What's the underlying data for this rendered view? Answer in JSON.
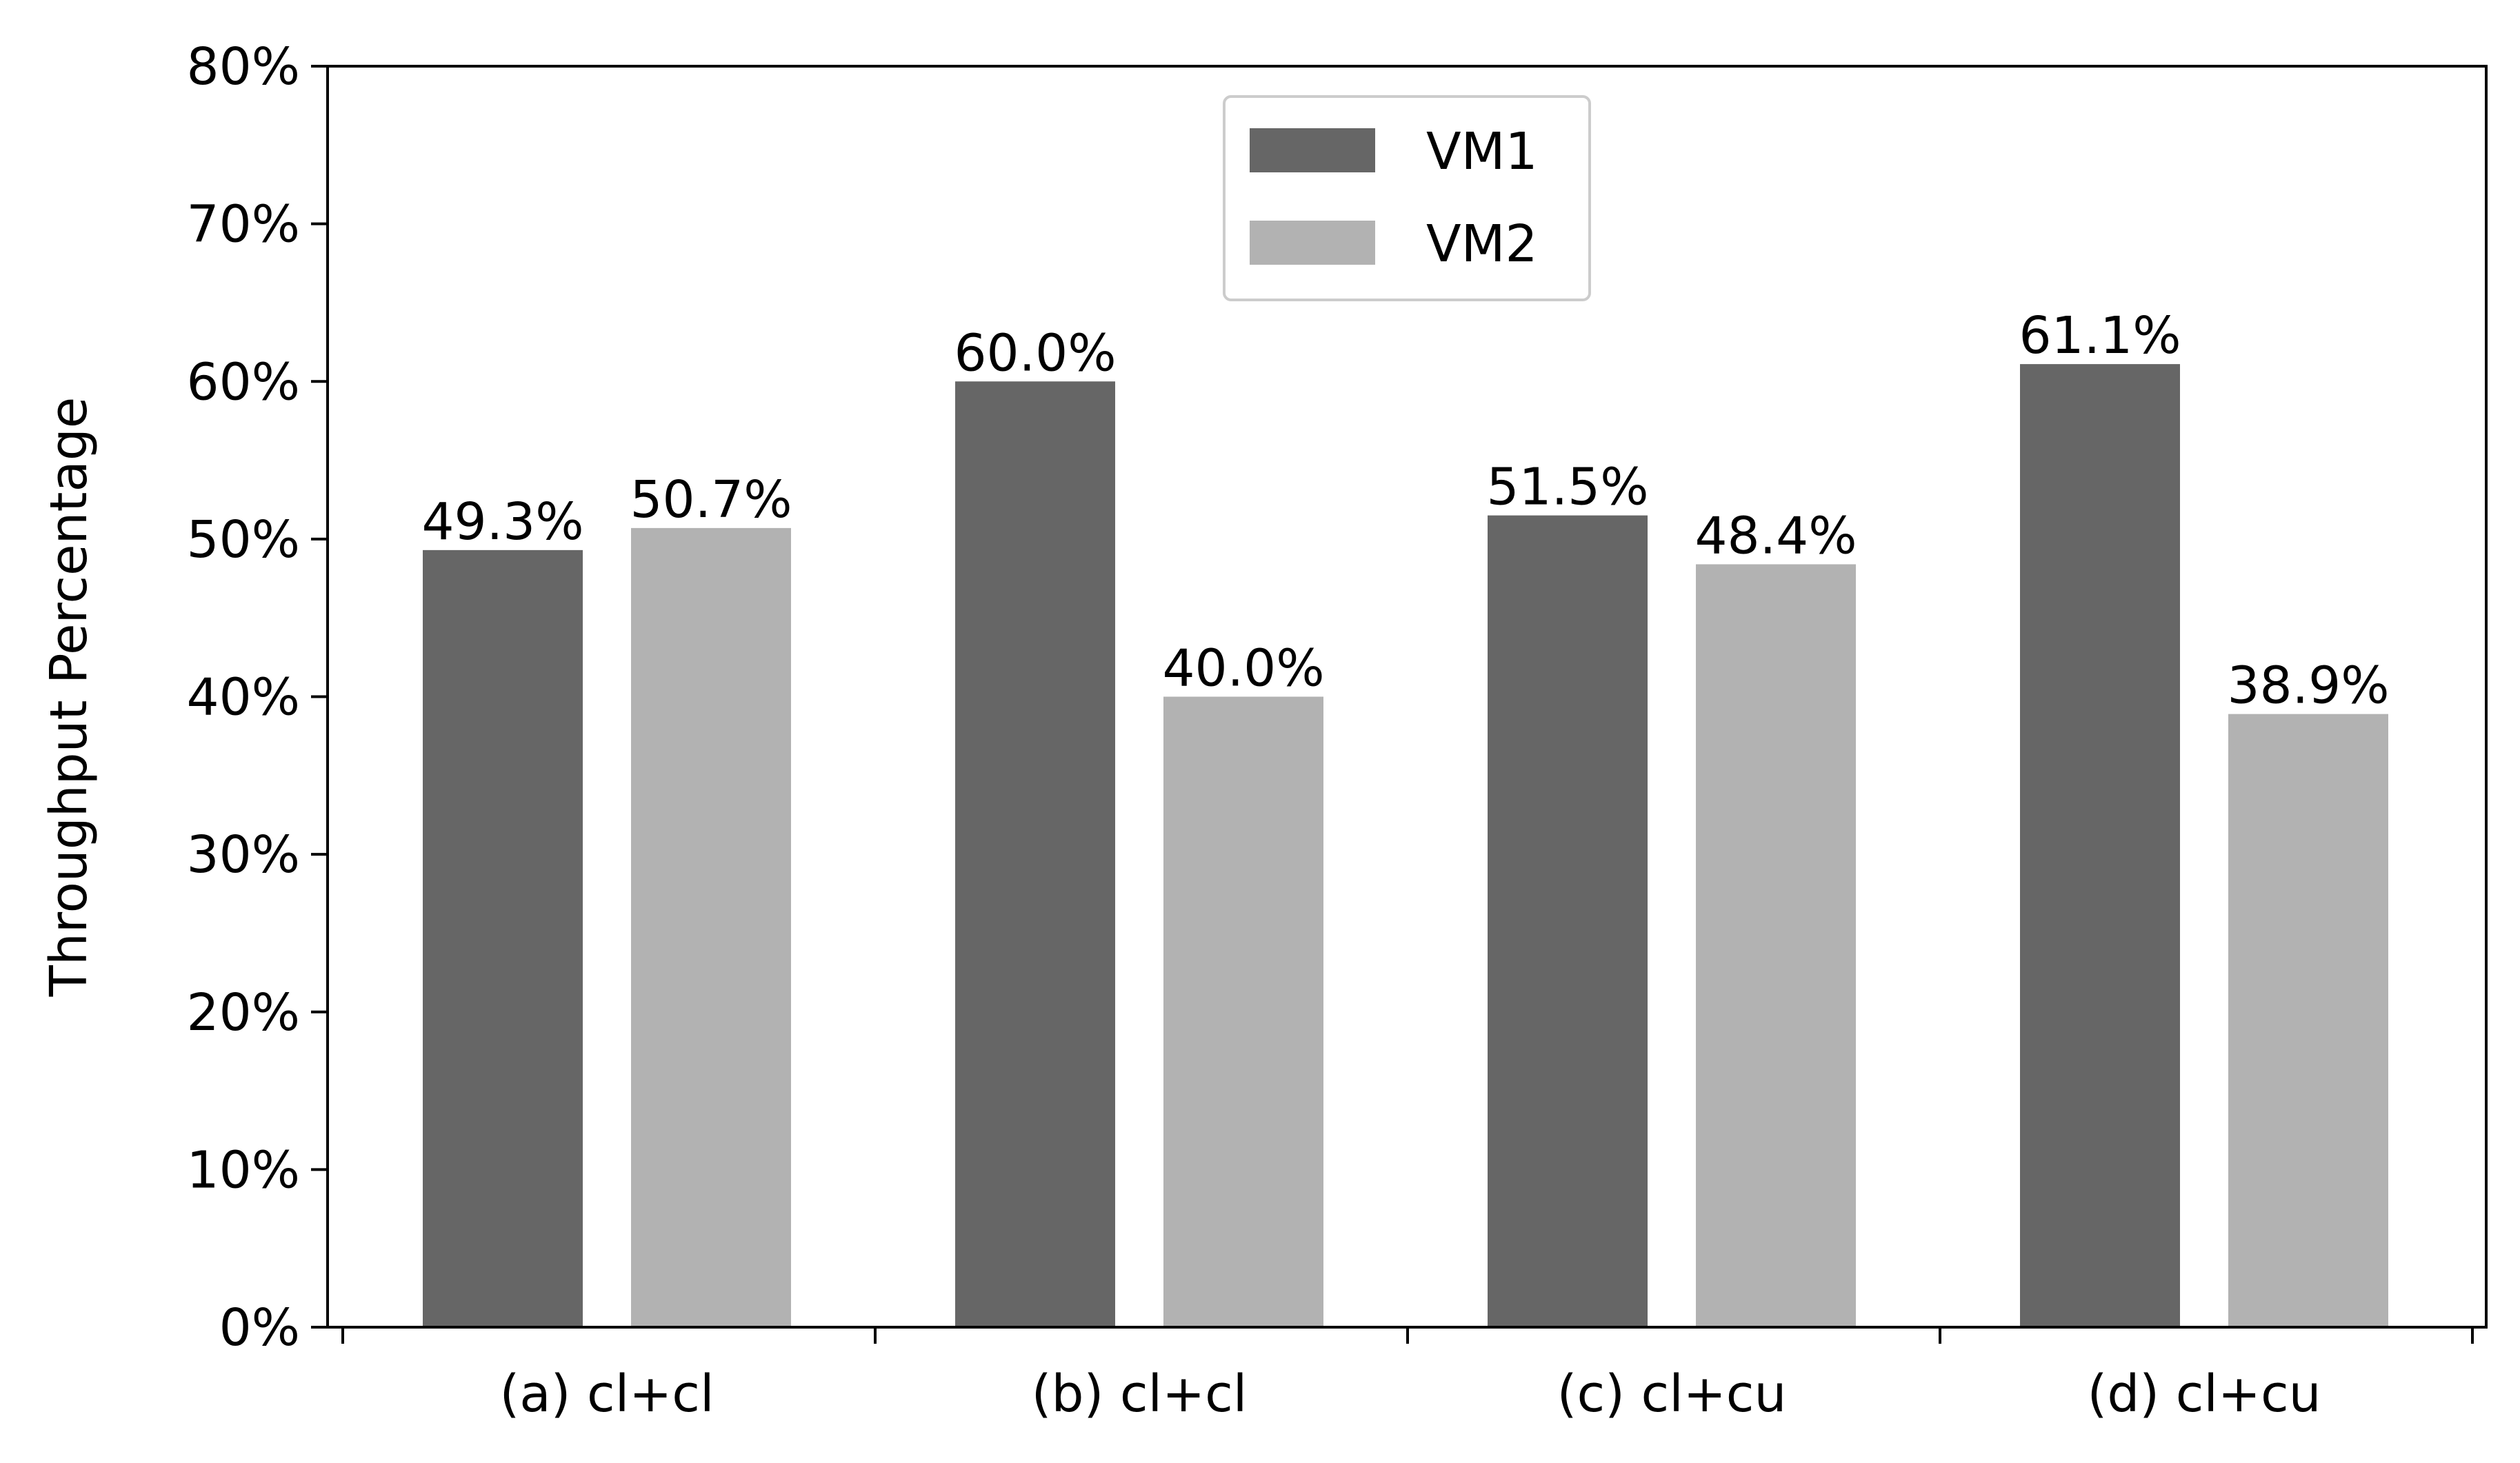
{
  "chart_data": {
    "type": "bar",
    "title": "",
    "xlabel": "",
    "ylabel": "Throughput Percentage",
    "categories": [
      "(a) cl+cl",
      "(b) cl+cl",
      "(c) cl+cu",
      "(d) cl+cu"
    ],
    "series": [
      {
        "name": "VM1",
        "color": "#666666",
        "values": [
          49.3,
          60.0,
          51.5,
          61.1
        ],
        "labels": [
          "49.3%",
          "60.0%",
          "51.5%",
          "61.1%"
        ]
      },
      {
        "name": "VM2",
        "color": "#b2b2b2",
        "values": [
          50.7,
          40.0,
          48.4,
          38.9
        ],
        "labels": [
          "50.7%",
          "40.0%",
          "48.4%",
          "38.9%"
        ]
      }
    ],
    "ylim": [
      0,
      80
    ],
    "yticks": [
      0,
      10,
      20,
      30,
      40,
      50,
      60,
      70,
      80
    ],
    "ytick_labels": [
      "0%",
      "10%",
      "20%",
      "30%",
      "40%",
      "50%",
      "60%",
      "70%",
      "80%"
    ],
    "grid": false,
    "legend_position": "top-center"
  }
}
